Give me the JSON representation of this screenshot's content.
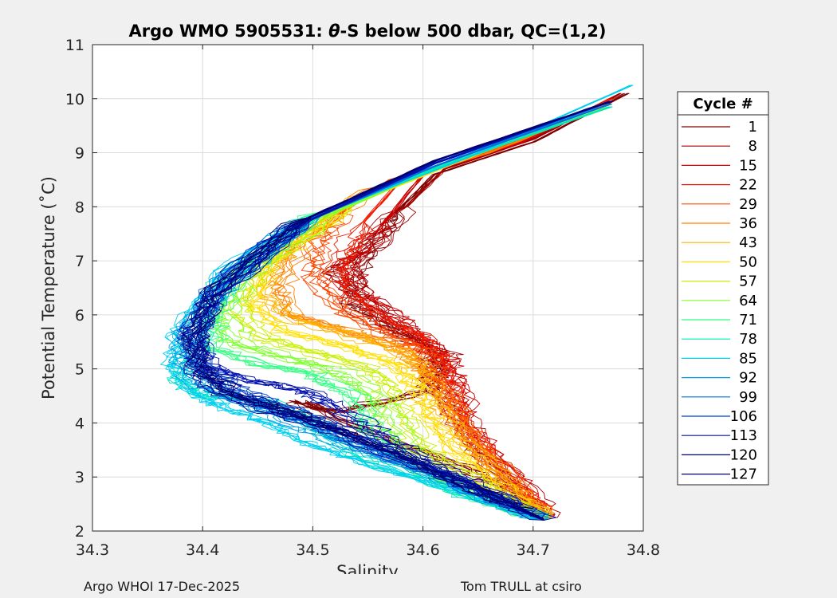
{
  "chart_data": {
    "type": "line",
    "title_prefix": "Argo WMO 5905531: ",
    "title_symbol": "θ",
    "title_suffix": "-S below 500 dbar,  QC=(1,2)",
    "xlabel": "Salinity",
    "ylabel": "Potential Temperature (˚C)",
    "xlim": [
      34.3,
      34.8
    ],
    "ylim": [
      2,
      11
    ],
    "xticks": [
      "34.3",
      "34.4",
      "34.5",
      "34.6",
      "34.7",
      "34.8"
    ],
    "yticks": [
      "2",
      "3",
      "4",
      "5",
      "6",
      "7",
      "8",
      "9",
      "10",
      "11"
    ],
    "grid": true,
    "legend_title": "Cycle #",
    "legend_position": "outside-right",
    "series": [
      {
        "name": "1",
        "color": "#800000",
        "points": [
          [
            34.785,
            10.1
          ],
          [
            34.7,
            9.2
          ],
          [
            34.61,
            8.6
          ],
          [
            34.57,
            7.8
          ],
          [
            34.54,
            7.0
          ],
          [
            34.53,
            6.2
          ],
          [
            34.56,
            5.8
          ],
          [
            34.6,
            5.4
          ],
          [
            34.61,
            5.0
          ],
          [
            34.6,
            4.6
          ],
          [
            34.52,
            4.2
          ],
          [
            34.48,
            4.4
          ],
          [
            34.55,
            3.8
          ],
          [
            34.63,
            3.2
          ],
          [
            34.67,
            2.8
          ],
          [
            34.71,
            2.25
          ]
        ]
      },
      {
        "name": "8",
        "color": "#a00000",
        "points": [
          [
            34.78,
            10.1
          ],
          [
            34.7,
            9.25
          ],
          [
            34.62,
            8.7
          ],
          [
            34.58,
            7.9
          ],
          [
            34.55,
            7.2
          ],
          [
            34.52,
            6.8
          ],
          [
            34.55,
            6.3
          ],
          [
            34.58,
            5.7
          ],
          [
            34.62,
            5.3
          ],
          [
            34.61,
            4.8
          ],
          [
            34.63,
            4.2
          ],
          [
            34.65,
            3.5
          ],
          [
            34.7,
            2.6
          ],
          [
            34.71,
            2.22
          ]
        ]
      },
      {
        "name": "15",
        "color": "#cc0000",
        "points": [
          [
            34.77,
            10.0
          ],
          [
            34.69,
            9.2
          ],
          [
            34.6,
            8.6
          ],
          [
            34.56,
            7.6
          ],
          [
            34.53,
            6.9
          ],
          [
            34.54,
            6.4
          ],
          [
            34.57,
            6.0
          ],
          [
            34.6,
            5.5
          ],
          [
            34.62,
            5.1
          ],
          [
            34.63,
            4.6
          ],
          [
            34.64,
            3.9
          ],
          [
            34.68,
            3.0
          ],
          [
            34.71,
            2.22
          ]
        ]
      },
      {
        "name": "22",
        "color": "#ee1a00",
        "points": [
          [
            34.77,
            10.0
          ],
          [
            34.68,
            9.15
          ],
          [
            34.58,
            8.5
          ],
          [
            34.54,
            7.6
          ],
          [
            34.52,
            7.0
          ],
          [
            34.52,
            6.5
          ],
          [
            34.55,
            6.0
          ],
          [
            34.59,
            5.6
          ],
          [
            34.61,
            5.2
          ],
          [
            34.62,
            4.7
          ],
          [
            34.63,
            4.0
          ],
          [
            34.67,
            3.1
          ],
          [
            34.71,
            2.2
          ]
        ]
      },
      {
        "name": "29",
        "color": "#ff4a00",
        "points": [
          [
            34.77,
            9.95
          ],
          [
            34.67,
            9.1
          ],
          [
            34.57,
            8.5
          ],
          [
            34.52,
            7.8
          ],
          [
            34.5,
            7.2
          ],
          [
            34.5,
            6.6
          ],
          [
            34.53,
            6.0
          ],
          [
            34.57,
            5.6
          ],
          [
            34.6,
            5.3
          ],
          [
            34.61,
            4.8
          ],
          [
            34.63,
            4.1
          ],
          [
            34.66,
            3.2
          ],
          [
            34.71,
            2.22
          ]
        ]
      },
      {
        "name": "36",
        "color": "#ff8000",
        "points": [
          [
            34.77,
            9.9
          ],
          [
            34.66,
            9.0
          ],
          [
            34.55,
            8.3
          ],
          [
            34.49,
            7.4
          ],
          [
            34.47,
            6.6
          ],
          [
            34.48,
            6.0
          ],
          [
            34.53,
            5.7
          ],
          [
            34.58,
            5.4
          ],
          [
            34.6,
            5.0
          ],
          [
            34.62,
            4.5
          ],
          [
            34.64,
            3.8
          ],
          [
            34.67,
            3.1
          ],
          [
            34.71,
            2.2
          ]
        ]
      },
      {
        "name": "43",
        "color": "#ffb000",
        "points": [
          [
            34.77,
            9.9
          ],
          [
            34.65,
            9.0
          ],
          [
            34.54,
            8.2
          ],
          [
            34.47,
            7.2
          ],
          [
            34.45,
            6.4
          ],
          [
            34.48,
            5.9
          ],
          [
            34.54,
            5.6
          ],
          [
            34.58,
            5.3
          ],
          [
            34.6,
            4.9
          ],
          [
            34.61,
            4.4
          ],
          [
            34.63,
            3.7
          ],
          [
            34.67,
            3.0
          ],
          [
            34.71,
            2.2
          ]
        ]
      },
      {
        "name": "50",
        "color": "#ffe000",
        "points": [
          [
            34.77,
            9.9
          ],
          [
            34.64,
            8.9
          ],
          [
            34.53,
            8.0
          ],
          [
            34.46,
            7.0
          ],
          [
            34.44,
            6.2
          ],
          [
            34.47,
            5.7
          ],
          [
            34.53,
            5.4
          ],
          [
            34.57,
            5.1
          ],
          [
            34.59,
            4.7
          ],
          [
            34.6,
            4.2
          ],
          [
            34.62,
            3.6
          ],
          [
            34.66,
            2.9
          ],
          [
            34.71,
            2.2
          ]
        ]
      },
      {
        "name": "57",
        "color": "#c8f000",
        "points": [
          [
            34.77,
            9.85
          ],
          [
            34.63,
            8.85
          ],
          [
            34.52,
            7.9
          ],
          [
            34.45,
            6.9
          ],
          [
            34.43,
            6.1
          ],
          [
            34.45,
            5.6
          ],
          [
            34.5,
            5.3
          ],
          [
            34.55,
            5.0
          ],
          [
            34.57,
            4.6
          ],
          [
            34.58,
            4.1
          ],
          [
            34.6,
            3.5
          ],
          [
            34.65,
            2.9
          ],
          [
            34.71,
            2.2
          ]
        ]
      },
      {
        "name": "64",
        "color": "#80ff30",
        "points": [
          [
            34.77,
            9.85
          ],
          [
            34.62,
            8.8
          ],
          [
            34.51,
            7.8
          ],
          [
            34.44,
            6.8
          ],
          [
            34.42,
            6.0
          ],
          [
            34.43,
            5.5
          ],
          [
            34.48,
            5.2
          ],
          [
            34.53,
            4.9
          ],
          [
            34.56,
            4.5
          ],
          [
            34.57,
            4.0
          ],
          [
            34.59,
            3.4
          ],
          [
            34.64,
            2.8
          ],
          [
            34.71,
            2.2
          ]
        ]
      },
      {
        "name": "71",
        "color": "#30ff80",
        "points": [
          [
            34.77,
            9.85
          ],
          [
            34.62,
            8.8
          ],
          [
            34.5,
            7.8
          ],
          [
            34.43,
            6.7
          ],
          [
            34.41,
            5.9
          ],
          [
            34.41,
            5.4
          ],
          [
            34.45,
            5.1
          ],
          [
            34.5,
            4.9
          ],
          [
            34.54,
            4.5
          ],
          [
            34.55,
            3.9
          ],
          [
            34.58,
            3.3
          ],
          [
            34.64,
            2.7
          ],
          [
            34.71,
            2.2
          ]
        ]
      },
      {
        "name": "78",
        "color": "#00e8c0",
        "points": [
          [
            34.77,
            9.85
          ],
          [
            34.61,
            8.7
          ],
          [
            34.49,
            7.7
          ],
          [
            34.42,
            6.6
          ],
          [
            34.4,
            5.9
          ],
          [
            34.39,
            5.3
          ],
          [
            34.38,
            4.8
          ],
          [
            34.4,
            4.5
          ],
          [
            34.46,
            4.4
          ],
          [
            34.5,
            4.0
          ],
          [
            34.54,
            3.4
          ],
          [
            34.62,
            2.8
          ],
          [
            34.71,
            2.2
          ]
        ]
      },
      {
        "name": "85",
        "color": "#00d0f0",
        "points": [
          [
            34.79,
            10.25
          ],
          [
            34.64,
            8.9
          ],
          [
            34.5,
            7.8
          ],
          [
            34.42,
            6.8
          ],
          [
            34.38,
            5.7
          ],
          [
            34.375,
            5.1
          ],
          [
            34.39,
            4.6
          ],
          [
            34.42,
            4.3
          ],
          [
            34.46,
            4.0
          ],
          [
            34.5,
            3.6
          ],
          [
            34.56,
            3.2
          ],
          [
            34.64,
            2.7
          ],
          [
            34.71,
            2.2
          ]
        ]
      },
      {
        "name": "92",
        "color": "#00a0e8",
        "points": [
          [
            34.77,
            9.9
          ],
          [
            34.61,
            8.8
          ],
          [
            34.49,
            7.7
          ],
          [
            34.42,
            6.6
          ],
          [
            34.39,
            5.8
          ],
          [
            34.38,
            5.2
          ],
          [
            34.4,
            4.7
          ],
          [
            34.44,
            4.4
          ],
          [
            34.48,
            4.0
          ],
          [
            34.53,
            3.6
          ],
          [
            34.6,
            3.1
          ],
          [
            34.66,
            2.6
          ],
          [
            34.71,
            2.2
          ]
        ]
      },
      {
        "name": "99",
        "color": "#0070e0",
        "points": [
          [
            34.77,
            9.9
          ],
          [
            34.61,
            8.75
          ],
          [
            34.48,
            7.6
          ],
          [
            34.41,
            6.5
          ],
          [
            34.39,
            5.7
          ],
          [
            34.39,
            5.1
          ],
          [
            34.41,
            4.6
          ],
          [
            34.45,
            4.3
          ],
          [
            34.5,
            4.0
          ],
          [
            34.55,
            3.5
          ],
          [
            34.62,
            3.0
          ],
          [
            34.67,
            2.5
          ],
          [
            34.71,
            2.2
          ]
        ]
      },
      {
        "name": "106",
        "color": "#0040d0",
        "points": [
          [
            34.77,
            9.95
          ],
          [
            34.61,
            8.8
          ],
          [
            34.48,
            7.6
          ],
          [
            34.41,
            6.4
          ],
          [
            34.39,
            5.6
          ],
          [
            34.4,
            5.0
          ],
          [
            34.43,
            4.6
          ],
          [
            34.47,
            4.3
          ],
          [
            34.52,
            3.9
          ],
          [
            34.57,
            3.4
          ],
          [
            34.63,
            2.9
          ],
          [
            34.68,
            2.5
          ],
          [
            34.71,
            2.2
          ]
        ]
      },
      {
        "name": "113",
        "color": "#0010b0",
        "points": [
          [
            34.77,
            9.95
          ],
          [
            34.61,
            8.8
          ],
          [
            34.48,
            7.6
          ],
          [
            34.41,
            6.4
          ],
          [
            34.39,
            5.6
          ],
          [
            34.4,
            5.1
          ],
          [
            34.44,
            4.8
          ],
          [
            34.49,
            4.6
          ],
          [
            34.52,
            4.3
          ],
          [
            34.56,
            3.8
          ],
          [
            34.61,
            3.2
          ],
          [
            34.67,
            2.6
          ],
          [
            34.71,
            2.2
          ]
        ]
      },
      {
        "name": "120",
        "color": "#000090",
        "points": [
          [
            34.77,
            9.95
          ],
          [
            34.61,
            8.85
          ],
          [
            34.48,
            7.65
          ],
          [
            34.41,
            6.5
          ],
          [
            34.39,
            5.7
          ],
          [
            34.39,
            5.0
          ],
          [
            34.41,
            4.6
          ],
          [
            34.46,
            4.2
          ],
          [
            34.51,
            3.9
          ],
          [
            34.57,
            3.4
          ],
          [
            34.63,
            2.9
          ],
          [
            34.68,
            2.45
          ],
          [
            34.71,
            2.2
          ]
        ]
      },
      {
        "name": "127",
        "color": "#000070",
        "points": [
          [
            34.77,
            9.95
          ],
          [
            34.61,
            8.85
          ],
          [
            34.48,
            7.65
          ],
          [
            34.41,
            6.5
          ],
          [
            34.39,
            5.6
          ],
          [
            34.4,
            4.9
          ],
          [
            34.43,
            4.5
          ],
          [
            34.48,
            4.2
          ],
          [
            34.53,
            3.8
          ],
          [
            34.59,
            3.3
          ],
          [
            34.64,
            2.8
          ],
          [
            34.69,
            2.4
          ],
          [
            34.71,
            2.2
          ]
        ]
      }
    ]
  },
  "footer": {
    "left": "Argo WHOI 17-Dec-2025",
    "right": "Tom TRULL at csiro"
  }
}
